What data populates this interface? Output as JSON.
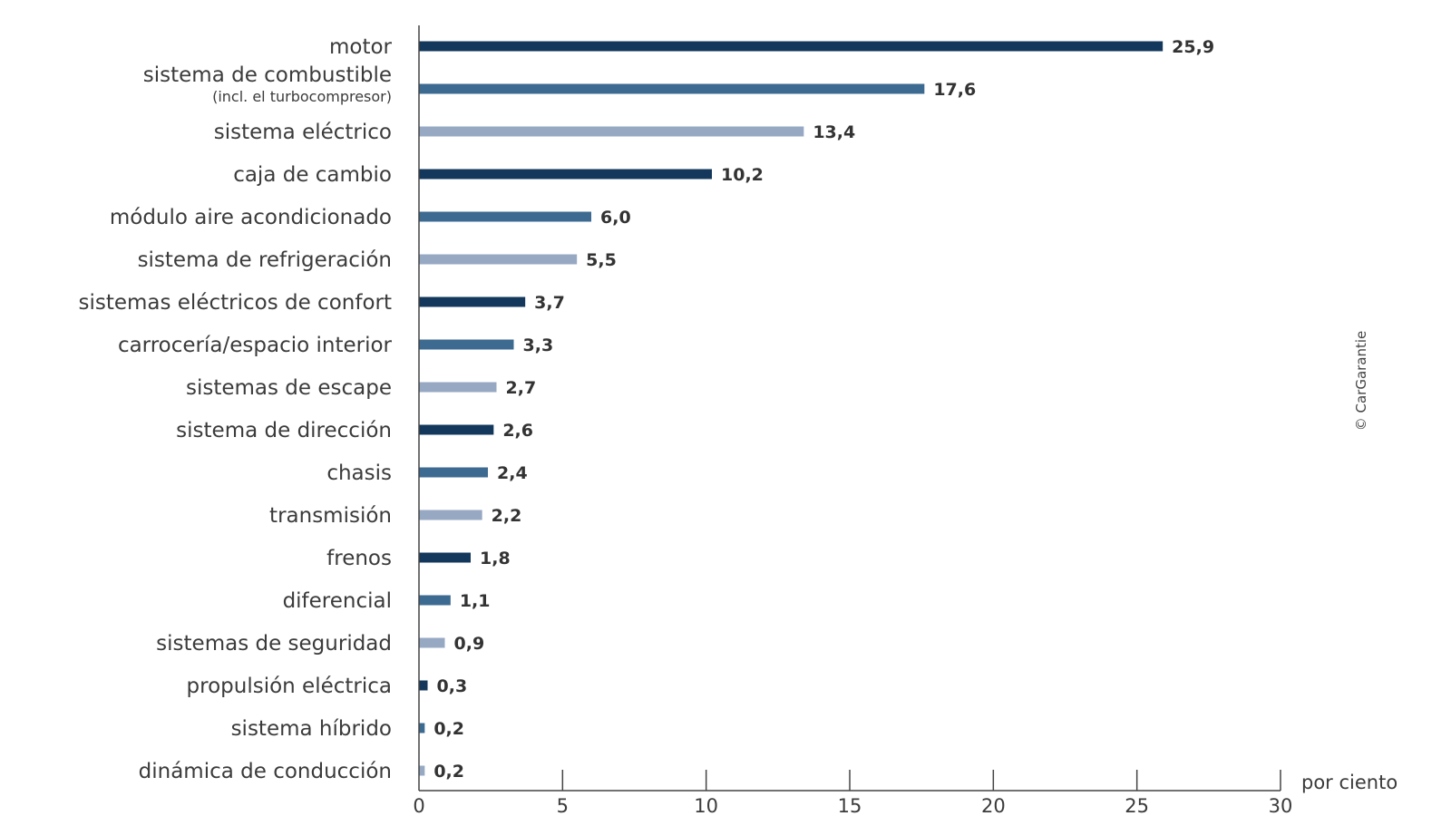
{
  "chart_data": {
    "type": "bar",
    "orientation": "horizontal",
    "categories": [
      "motor",
      "sistema de combustible",
      "sistema eléctrico",
      "caja de cambio",
      "módulo aire acondicionado",
      "sistema de refrigeración",
      "sistemas eléctricos de confort",
      "carrocería/espacio interior",
      "sistemas de escape",
      "sistema de dirección",
      "chasis",
      "transmisión",
      "frenos",
      "diferencial",
      "sistemas de seguridad",
      "propulsión eléctrica",
      "sistema híbrido",
      "dinámica de conducción"
    ],
    "category_notes": [
      "",
      "(incl. el turbocompresor)",
      "",
      "",
      "",
      "",
      "",
      "",
      "",
      "",
      "",
      "",
      "",
      "",
      "",
      "",
      "",
      ""
    ],
    "values": [
      25.9,
      17.6,
      13.4,
      10.2,
      6.0,
      5.5,
      3.7,
      3.3,
      2.7,
      2.6,
      2.4,
      2.2,
      1.8,
      1.1,
      0.9,
      0.3,
      0.2,
      0.2
    ],
    "value_labels": [
      "25,9",
      "17,6",
      "13,4",
      "10,2",
      "6,0",
      "5,5",
      "3,7",
      "3,3",
      "2,7",
      "2,6",
      "2,4",
      "2,2",
      "1,8",
      "1,1",
      "0,9",
      "0,3",
      "0,2",
      "0,2"
    ],
    "bar_colors": [
      "#14385c",
      "#3d6a91",
      "#97a8c3"
    ],
    "xlim": [
      0,
      30
    ],
    "xticks": [
      0,
      5,
      10,
      15,
      20,
      25,
      30
    ],
    "xtick_labels": [
      "0",
      "5",
      "10",
      "15",
      "20",
      "25",
      "30"
    ],
    "xlabel": "por ciento",
    "grid": false,
    "legend": "none",
    "copyright": "© CarGarantie"
  }
}
